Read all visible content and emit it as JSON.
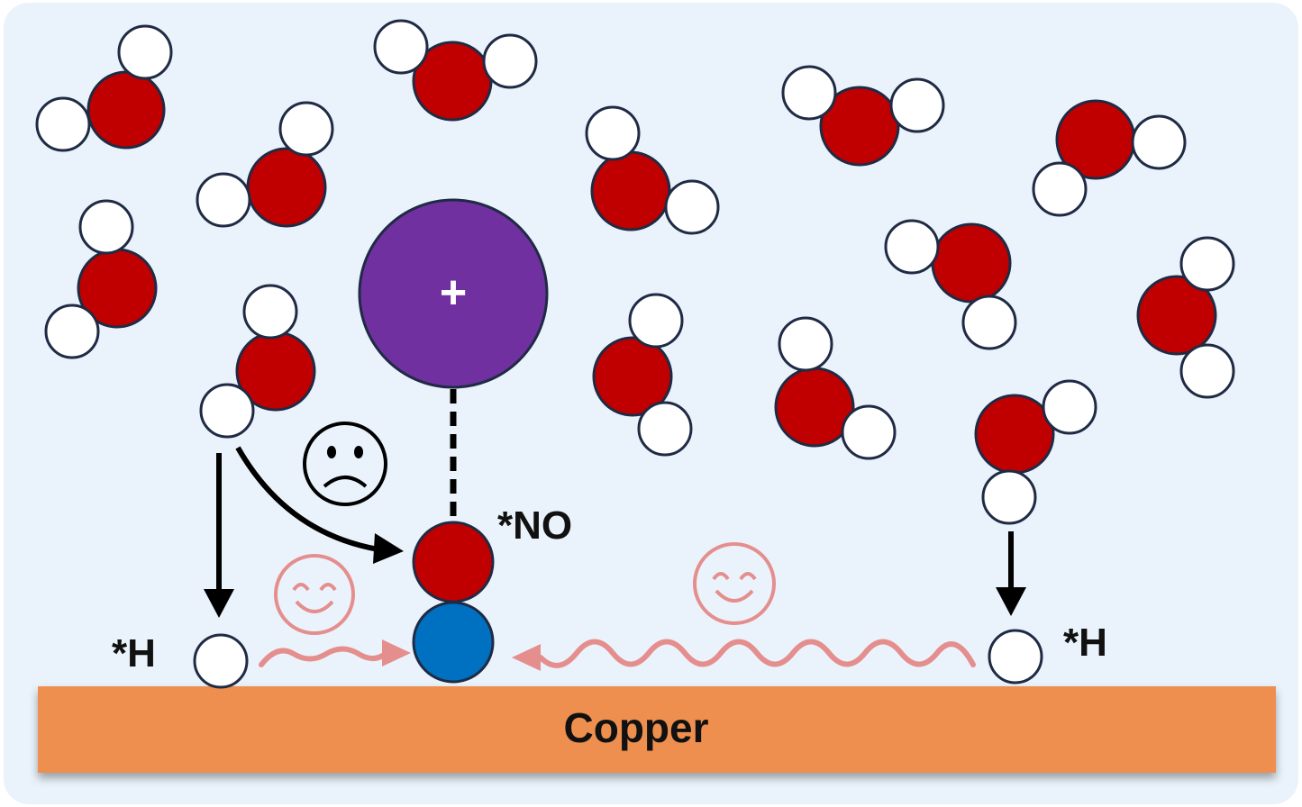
{
  "labels": {
    "no": "*NO",
    "h_left": "*H",
    "h_right": "*H",
    "substrate": "Copper",
    "cation_sign": "+"
  },
  "colors": {
    "background": "#eaf3fb",
    "oxygen": "#c00000",
    "hydrogen": "#ffffff",
    "outline": "#1f2a44",
    "nitrogen": "#0070c0",
    "cation": "#7030a0",
    "copper": "#ee8f4f",
    "arrow": "#000000",
    "migration": "#e58e8e"
  },
  "icons": {
    "sad_face": "sad-face-icon",
    "happy_face": "happy-face-icon",
    "water": "water-molecule-icon"
  }
}
